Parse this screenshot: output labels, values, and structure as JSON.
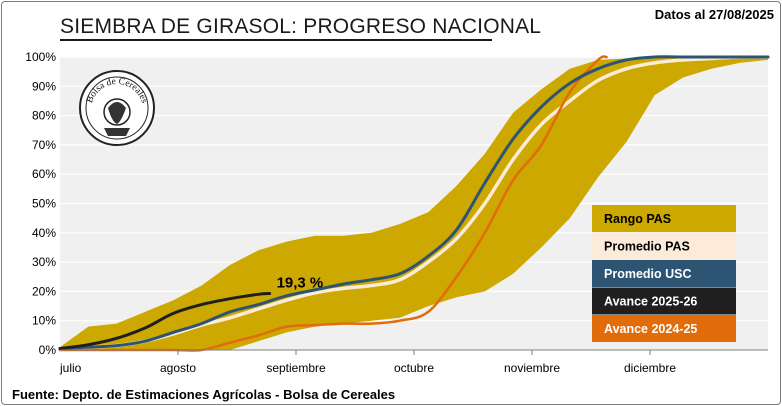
{
  "header": {
    "title": "SIEMBRA DE GIRASOL: PROGRESO NACIONAL",
    "date": "Datos al 27/08/2025"
  },
  "footer": {
    "source": "Fuente: Depto. de Estimaciones Agrícolas - Bolsa de Cereales"
  },
  "logo": {
    "text": "Bolsa de Cereales",
    "icon": "bolsa-de-cereales-seal-icon"
  },
  "colors": {
    "range": "#cda800",
    "average": "#fcebd8",
    "usc": "#2e5473",
    "current": "#1f1f1f",
    "previous": "#e26b0a",
    "plot_bg": "#f0f0f0",
    "grid": "#ffffff"
  },
  "chart_data": {
    "type": "area",
    "x_tick_labels": [
      "julio",
      "agosto",
      "septiembre",
      "octubre",
      "noviembre",
      "diciembre"
    ],
    "y_tick_labels": [
      "0%",
      "10%",
      "20%",
      "30%",
      "40%",
      "50%",
      "60%",
      "70%",
      "80%",
      "90%",
      "100%"
    ],
    "xlim": [
      0,
      25
    ],
    "ylim": [
      0,
      100
    ],
    "grid": true,
    "legend_position": "right",
    "annotation": "19,3 %",
    "series": [
      {
        "name": "Rango PAS",
        "kind": "band",
        "x": [
          0,
          1,
          2,
          3,
          4,
          5,
          6,
          7,
          8,
          9,
          10,
          11,
          12,
          13,
          14,
          15,
          16,
          17,
          18,
          19,
          20,
          21,
          22,
          23,
          24,
          25
        ],
        "upper": [
          1,
          8,
          9,
          13,
          17,
          22,
          29,
          34,
          37,
          39,
          39,
          40,
          43,
          47,
          56,
          67,
          81,
          89,
          96,
          99,
          99.5,
          100,
          100,
          100,
          100,
          100
        ],
        "lower": [
          0,
          0,
          0,
          0,
          0,
          0,
          0,
          3,
          6,
          8,
          9,
          10,
          11,
          15,
          18,
          20,
          26,
          35,
          45,
          59,
          71,
          87,
          93,
          96,
          98,
          99
        ]
      },
      {
        "name": "Promedio PAS",
        "kind": "line",
        "x": [
          0,
          1,
          2,
          3,
          4,
          5,
          6,
          7,
          8,
          9,
          10,
          11,
          12,
          13,
          14,
          15,
          16,
          17,
          18,
          19,
          20,
          21,
          22,
          23,
          24,
          25
        ],
        "values": [
          0.5,
          1,
          1.5,
          3,
          5.5,
          8.5,
          11,
          14,
          17,
          19.5,
          21,
          22,
          24,
          30,
          38,
          50,
          65,
          77,
          85,
          92,
          96,
          98,
          99,
          99.5,
          100,
          100
        ]
      },
      {
        "name": "Promedio USC",
        "kind": "line",
        "x": [
          0,
          1,
          2,
          3,
          4,
          5,
          6,
          7,
          8,
          9,
          10,
          11,
          12,
          13,
          14,
          15,
          16,
          17,
          18,
          19,
          20,
          21,
          22,
          23,
          24,
          25
        ],
        "values": [
          0.5,
          1,
          1.5,
          3,
          6,
          9,
          13,
          15.5,
          18.5,
          20.5,
          22.5,
          24,
          26,
          32,
          41,
          57,
          72,
          83,
          91,
          96,
          99,
          100,
          100,
          100,
          100,
          100
        ]
      },
      {
        "name": "Avance 2025-26",
        "kind": "line",
        "x": [
          0,
          1,
          2,
          3,
          4,
          5,
          6,
          7,
          7.4
        ],
        "values": [
          0.5,
          1.8,
          4,
          7.5,
          12.5,
          15.5,
          17.5,
          19,
          19.3
        ]
      },
      {
        "name": "Avance 2024-25",
        "kind": "line",
        "x": [
          0,
          1,
          2,
          3,
          4,
          5,
          6,
          7,
          8,
          9,
          10,
          11,
          12,
          13,
          14,
          15,
          16,
          17,
          18,
          19,
          19.3
        ],
        "values": [
          0,
          0,
          0,
          0,
          0,
          0,
          2.5,
          5,
          8,
          8.5,
          9,
          9,
          10,
          13,
          25,
          40,
          58,
          70,
          88,
          99,
          100
        ]
      }
    ]
  }
}
